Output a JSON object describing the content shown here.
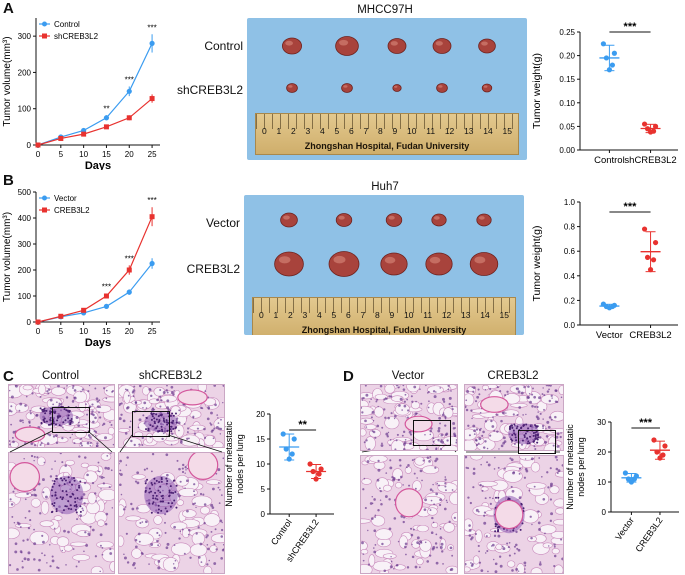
{
  "panels": {
    "A": {
      "label": "A",
      "growth": {
        "legend": [
          "Control",
          "shCREB3L2"
        ],
        "ylabel": "Tumor  volume(mm³)",
        "xlabel": "Days",
        "yticks": [
          "0",
          "100",
          "200",
          "300"
        ],
        "xticks": [
          "0",
          "5",
          "10",
          "15",
          "20",
          "25"
        ],
        "sig": [
          "**",
          "***",
          "***"
        ]
      },
      "photo": {
        "title": "MHCC97H",
        "rows": [
          "Control",
          "shCREB3L2"
        ],
        "ruler_nums": [
          "0",
          "1",
          "2",
          "3",
          "4",
          "5",
          "6",
          "7",
          "8",
          "9",
          "10",
          "11",
          "12",
          "13",
          "14",
          "15"
        ],
        "ruler_text": "Zhongshan Hospital, Fudan University"
      },
      "weight": {
        "ylabel": "Tumor  weight(g)",
        "yticks": [
          "0.00",
          "0.05",
          "0.10",
          "0.15",
          "0.20",
          "0.25"
        ],
        "categories": [
          "Control",
          "shCREB3L2"
        ],
        "sig": "***"
      }
    },
    "B": {
      "label": "B",
      "growth": {
        "legend": [
          "Vector",
          "CREB3L2"
        ],
        "ylabel": "Tumor  volume(mm³)",
        "xlabel": "Days",
        "yticks": [
          "0",
          "100",
          "200",
          "300",
          "400",
          "500"
        ],
        "xticks": [
          "0",
          "5",
          "10",
          "15",
          "20",
          "25"
        ],
        "sig": [
          "***",
          "***",
          "***"
        ]
      },
      "photo": {
        "title": "Huh7",
        "rows": [
          "Vector",
          "CREB3L2"
        ],
        "ruler_nums": [
          "0",
          "1",
          "2",
          "3",
          "4",
          "5",
          "6",
          "7",
          "8",
          "9",
          "10",
          "11",
          "12",
          "13",
          "14",
          "15"
        ],
        "ruler_text": "Zhongshan Hospital, Fudan University"
      },
      "weight": {
        "ylabel": "Tumor  weight(g)",
        "yticks": [
          "0.0",
          "0.2",
          "0.4",
          "0.6",
          "0.8",
          "1.0"
        ],
        "categories": [
          "Vector",
          "CREB3L2"
        ],
        "sig": "***"
      }
    },
    "C": {
      "label": "C",
      "titles": [
        "Control",
        "shCREB3L2"
      ],
      "ylabel": [
        "Number of  metastatic",
        "nodes per lung"
      ],
      "yticks": [
        "0",
        "5",
        "10",
        "15",
        "20"
      ],
      "categories": [
        "Control",
        "shCREB3L2"
      ],
      "sig": "**"
    },
    "D": {
      "label": "D",
      "titles": [
        "Vector",
        "CREB3L2"
      ],
      "ylabel": [
        "Number of  metastatic",
        "nodes per lung"
      ],
      "yticks": [
        "0",
        "10",
        "20",
        "30"
      ],
      "categories": [
        "Vector",
        "CREB3L2"
      ],
      "sig": "***"
    }
  },
  "colors": {
    "blue": "#3b9cf0",
    "red": "#e8322f",
    "photo_bg": "#8fc1e6",
    "tumor": "#a8433c"
  },
  "chart_data": [
    {
      "type": "line",
      "panel": "A",
      "x": [
        0,
        5,
        10,
        15,
        20,
        25
      ],
      "series": [
        {
          "name": "Control",
          "values": [
            0,
            22,
            40,
            75,
            148,
            280
          ]
        },
        {
          "name": "shCREB3L2",
          "values": [
            0,
            18,
            30,
            50,
            75,
            128
          ]
        }
      ],
      "xlabel": "Days",
      "ylabel": "Tumor  volume(mm³)",
      "ylim": [
        0,
        350
      ]
    },
    {
      "type": "scatter",
      "panel": "A",
      "categories": [
        "Control",
        "shCREB3L2"
      ],
      "series": [
        {
          "name": "Control",
          "values": [
            0.225,
            0.205,
            0.195,
            0.18,
            0.17
          ]
        },
        {
          "name": "shCREB3L2",
          "values": [
            0.055,
            0.05,
            0.045,
            0.04,
            0.038
          ]
        }
      ],
      "ylabel": "Tumor  weight(g)",
      "ylim": [
        0,
        0.25
      ]
    },
    {
      "type": "line",
      "panel": "B",
      "x": [
        0,
        5,
        10,
        15,
        20,
        25
      ],
      "series": [
        {
          "name": "Vector",
          "values": [
            0,
            20,
            35,
            60,
            115,
            225
          ]
        },
        {
          "name": "CREB3L2",
          "values": [
            0,
            22,
            45,
            100,
            200,
            405
          ]
        }
      ],
      "xlabel": "Days",
      "ylabel": "Tumor  volume(mm³)",
      "ylim": [
        0,
        500
      ]
    },
    {
      "type": "scatter",
      "panel": "B",
      "categories": [
        "Vector",
        "CREB3L2"
      ],
      "series": [
        {
          "name": "Vector",
          "values": [
            0.17,
            0.16,
            0.15,
            0.15,
            0.14
          ]
        },
        {
          "name": "CREB3L2",
          "values": [
            0.78,
            0.67,
            0.55,
            0.53,
            0.45
          ]
        }
      ],
      "ylabel": "Tumor  weight(g)",
      "ylim": [
        0,
        1.0
      ]
    },
    {
      "type": "scatter",
      "panel": "C",
      "categories": [
        "Control",
        "shCREB3L2"
      ],
      "series": [
        {
          "name": "Control",
          "values": [
            16,
            15,
            13,
            12,
            11
          ]
        },
        {
          "name": "shCREB3L2",
          "values": [
            10,
            9,
            8.5,
            8,
            7
          ]
        }
      ],
      "ylim": [
        0,
        20
      ]
    },
    {
      "type": "scatter",
      "panel": "D",
      "categories": [
        "Vector",
        "CREB3L2"
      ],
      "series": [
        {
          "name": "Vector",
          "values": [
            13,
            12,
            11,
            11,
            10
          ]
        },
        {
          "name": "CREB3L2",
          "values": [
            24,
            22,
            20,
            19,
            18
          ]
        }
      ],
      "ylim": [
        0,
        30
      ]
    }
  ]
}
